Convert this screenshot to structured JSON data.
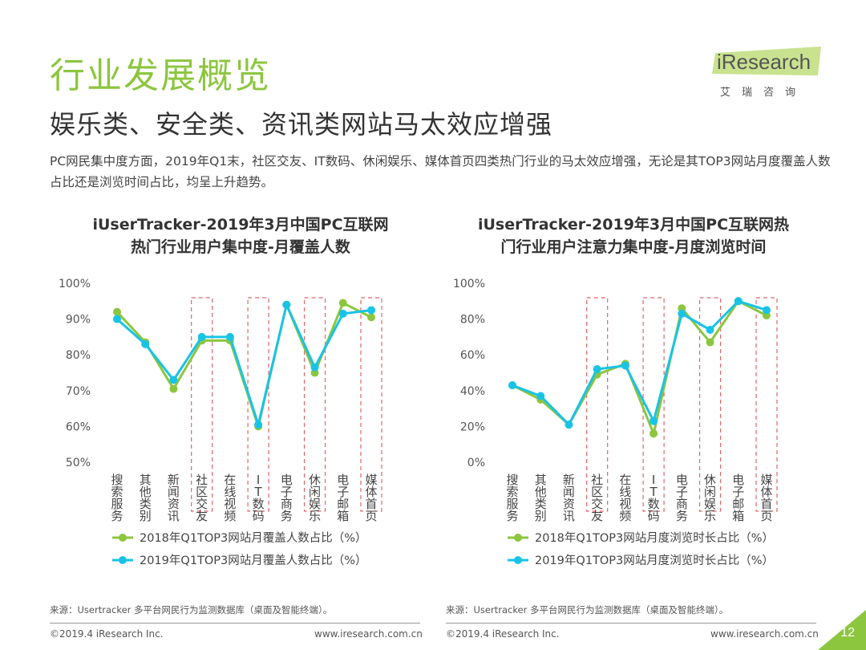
{
  "page": {
    "title": "行业发展概览",
    "subtitle": "娱乐类、安全类、资讯类网站马太效应增强",
    "description": "PC网民集中度方面，2019年Q1末，社区交友、IT数码、休闲娱乐、媒体首页四类热门行业的马太效应增强，无论是其TOP3网站月度覆盖人数占比还是浏览时间占比，均呈上升趋势。",
    "page_number": "12"
  },
  "logo": {
    "text": "iResearch",
    "subtext": "艾瑞咨询"
  },
  "footer": {
    "copyright_left": "©2019.4 iResearch Inc.",
    "url_left": "www.iresearch.com.cn",
    "copyright_right": "©2019.4 iResearch Inc.",
    "url_right": "www.iresearch.com.cn"
  },
  "colors": {
    "accent": "#8cc63f",
    "series_2018": "#8cc63f",
    "series_2019": "#19c3e6",
    "highlight_box": "#e06666"
  },
  "chart_data": [
    {
      "type": "line",
      "title_line1": "iUserTracker-2019年3月中国PC互联网",
      "title_line2": "热门行业用户集中度-月覆盖人数",
      "categories": [
        "搜索服务",
        "其他类别",
        "新闻资讯",
        "社区交友",
        "在线视频",
        "IT数码",
        "电子商务",
        "休闲娱乐",
        "电子邮箱",
        "媒体首页"
      ],
      "highlighted": [
        "社区交友",
        "IT数码",
        "休闲娱乐",
        "媒体首页"
      ],
      "ylim": [
        50,
        100
      ],
      "yticks": [
        "50%",
        "60%",
        "70%",
        "80%",
        "90%",
        "100%"
      ],
      "series": [
        {
          "name": "2018年Q1TOP3网站月覆盖人数占比（%）",
          "values": [
            92,
            83.5,
            70.5,
            84,
            84,
            60,
            94,
            75,
            94.5,
            90.5
          ]
        },
        {
          "name": "2019年Q1TOP3网站月覆盖人数占比（%）",
          "values": [
            90,
            83,
            73,
            85,
            85,
            60.5,
            94,
            76.5,
            91.5,
            92.5
          ]
        }
      ],
      "source": "来源：Usertracker 多平台网民行为监测数据库（桌面及智能终端）。"
    },
    {
      "type": "line",
      "title_line1": "iUserTracker-2019年3月中国PC互联网热",
      "title_line2": "门行业用户注意力集中度-月度浏览时间",
      "categories": [
        "搜索服务",
        "其他类别",
        "新闻资讯",
        "社区交友",
        "在线视频",
        "IT数码",
        "电子商务",
        "休闲娱乐",
        "电子邮箱",
        "媒体首页"
      ],
      "highlighted": [
        "社区交友",
        "IT数码",
        "休闲娱乐",
        "媒体首页"
      ],
      "ylim": [
        0,
        100
      ],
      "yticks": [
        "0%",
        "20%",
        "40%",
        "60%",
        "80%",
        "100%"
      ],
      "series": [
        {
          "name": "2018年Q1TOP3网站月度浏览时长占比（%）",
          "values": [
            43,
            35,
            21,
            49,
            55,
            16,
            86,
            67,
            90,
            82
          ]
        },
        {
          "name": "2019年Q1TOP3网站月度浏览时长占比（%）",
          "values": [
            43,
            37,
            21,
            52,
            54,
            23,
            83,
            74,
            90,
            85
          ]
        }
      ],
      "source": "来源：Usertracker 多平台网民行为监测数据库（桌面及智能终端）。"
    }
  ]
}
